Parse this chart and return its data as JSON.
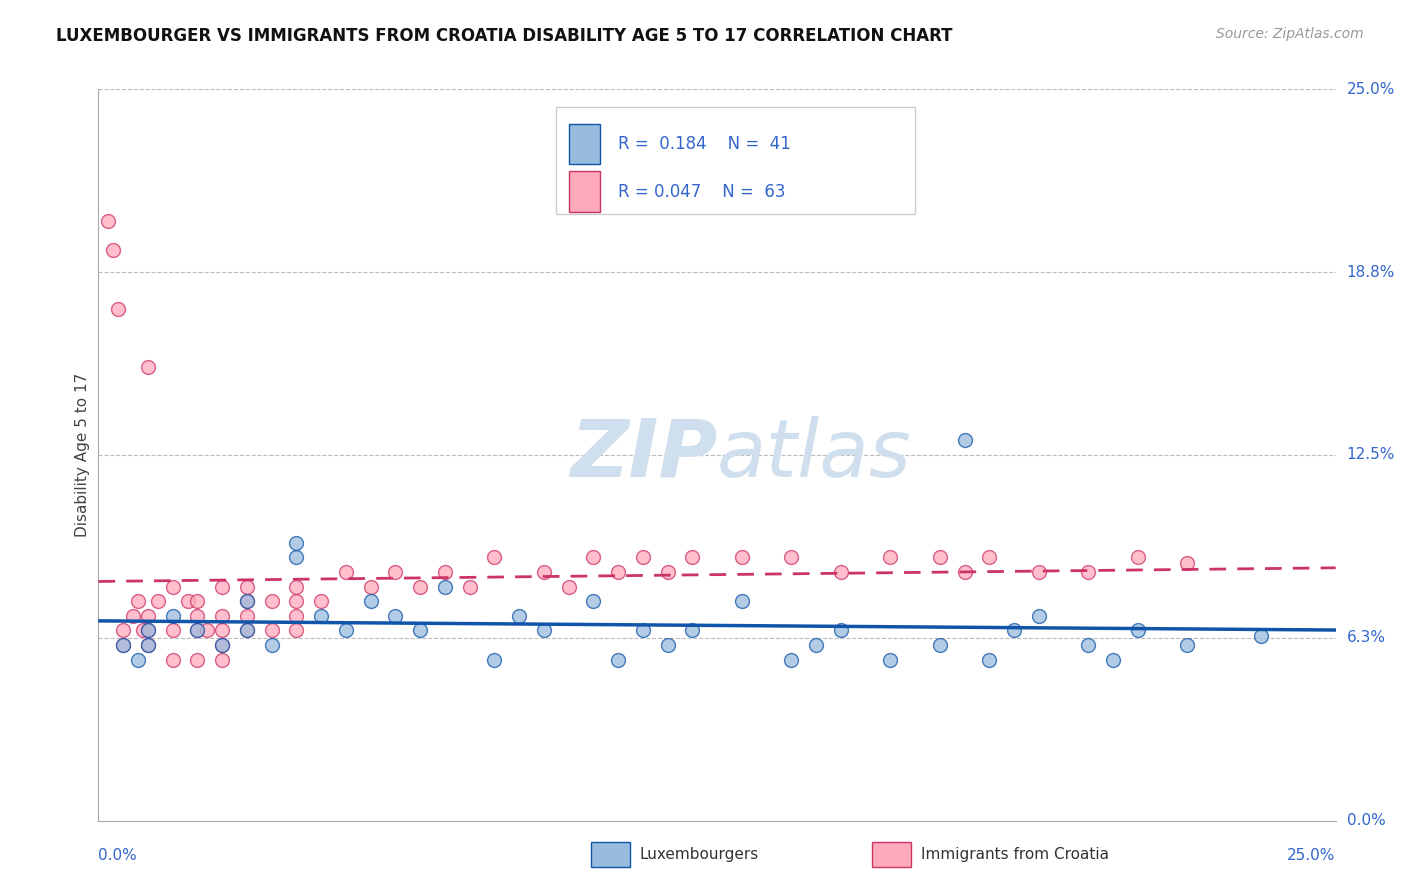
{
  "title": "LUXEMBOURGER VS IMMIGRANTS FROM CROATIA DISABILITY AGE 5 TO 17 CORRELATION CHART",
  "source": "Source: ZipAtlas.com",
  "ylabel": "Disability Age 5 to 17",
  "legend_label1": "Luxembourgers",
  "legend_label2": "Immigrants from Croatia",
  "r1": "0.184",
  "n1": "41",
  "r2": "0.047",
  "n2": "63",
  "xlim": [
    0.0,
    0.25
  ],
  "ylim": [
    0.0,
    0.25
  ],
  "ytick_labels": [
    "0.0%",
    "6.3%",
    "12.5%",
    "18.8%",
    "25.0%"
  ],
  "ytick_values": [
    0.0,
    0.0625,
    0.125,
    0.1875,
    0.25
  ],
  "color_blue": "#99BBDD",
  "color_pink": "#FFAABB",
  "color_blue_line": "#1155AA",
  "color_pink_line": "#CC3366",
  "watermark_color": "#D0DFEE",
  "blue_scatter_x": [
    0.005,
    0.008,
    0.01,
    0.01,
    0.015,
    0.02,
    0.025,
    0.03,
    0.03,
    0.035,
    0.04,
    0.04,
    0.045,
    0.05,
    0.055,
    0.06,
    0.065,
    0.07,
    0.08,
    0.085,
    0.09,
    0.1,
    0.105,
    0.11,
    0.115,
    0.12,
    0.13,
    0.14,
    0.145,
    0.15,
    0.16,
    0.17,
    0.175,
    0.18,
    0.185,
    0.19,
    0.2,
    0.205,
    0.21,
    0.22,
    0.235
  ],
  "blue_scatter_y": [
    0.06,
    0.055,
    0.065,
    0.06,
    0.07,
    0.065,
    0.06,
    0.075,
    0.065,
    0.06,
    0.09,
    0.095,
    0.07,
    0.065,
    0.075,
    0.07,
    0.065,
    0.08,
    0.055,
    0.07,
    0.065,
    0.075,
    0.055,
    0.065,
    0.06,
    0.065,
    0.075,
    0.055,
    0.06,
    0.065,
    0.055,
    0.06,
    0.13,
    0.055,
    0.065,
    0.07,
    0.06,
    0.055,
    0.065,
    0.06,
    0.063
  ],
  "pink_scatter_x": [
    0.002,
    0.003,
    0.004,
    0.005,
    0.005,
    0.007,
    0.008,
    0.009,
    0.01,
    0.01,
    0.01,
    0.01,
    0.012,
    0.015,
    0.015,
    0.015,
    0.018,
    0.02,
    0.02,
    0.02,
    0.02,
    0.022,
    0.025,
    0.025,
    0.025,
    0.025,
    0.025,
    0.03,
    0.03,
    0.03,
    0.03,
    0.035,
    0.035,
    0.04,
    0.04,
    0.04,
    0.04,
    0.045,
    0.05,
    0.055,
    0.06,
    0.065,
    0.07,
    0.075,
    0.08,
    0.09,
    0.095,
    0.1,
    0.105,
    0.11,
    0.115,
    0.12,
    0.13,
    0.14,
    0.15,
    0.16,
    0.17,
    0.175,
    0.18,
    0.19,
    0.2,
    0.21,
    0.22
  ],
  "pink_scatter_y": [
    0.205,
    0.195,
    0.175,
    0.065,
    0.06,
    0.07,
    0.075,
    0.065,
    0.155,
    0.07,
    0.065,
    0.06,
    0.075,
    0.08,
    0.065,
    0.055,
    0.075,
    0.07,
    0.065,
    0.075,
    0.055,
    0.065,
    0.08,
    0.07,
    0.065,
    0.06,
    0.055,
    0.075,
    0.065,
    0.07,
    0.08,
    0.075,
    0.065,
    0.07,
    0.065,
    0.075,
    0.08,
    0.075,
    0.085,
    0.08,
    0.085,
    0.08,
    0.085,
    0.08,
    0.09,
    0.085,
    0.08,
    0.09,
    0.085,
    0.09,
    0.085,
    0.09,
    0.09,
    0.09,
    0.085,
    0.09,
    0.09,
    0.085,
    0.09,
    0.085,
    0.085,
    0.09,
    0.088
  ]
}
